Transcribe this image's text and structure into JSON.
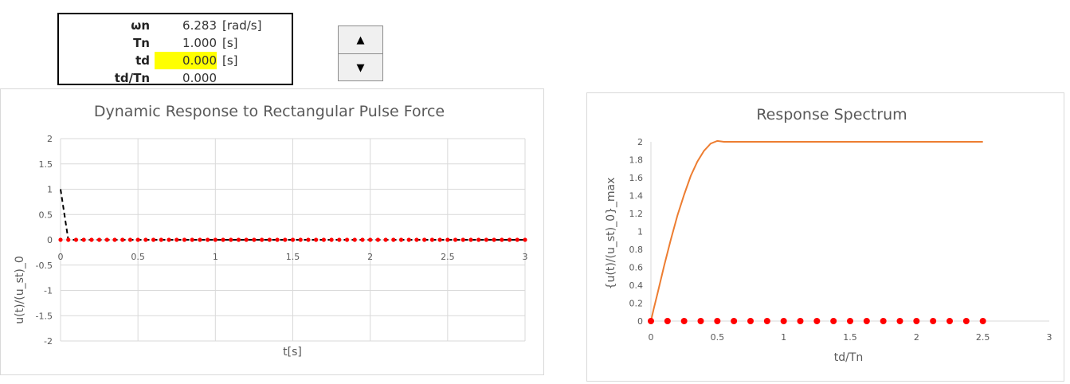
{
  "params": {
    "rows": [
      {
        "label": "ωn",
        "value": "6.283",
        "unit": "[rad/s]",
        "highlight": false
      },
      {
        "label": "Tn",
        "value": "1.000",
        "unit": "[s]",
        "highlight": false
      },
      {
        "label": "td",
        "value": "0.000",
        "unit": "[s]",
        "highlight": true
      },
      {
        "label": "td/Tn",
        "value": "0.000",
        "unit": "",
        "highlight": false
      }
    ],
    "highlight_color": "#ffff00"
  },
  "spinner": {
    "up_icon": "▲",
    "down_icon": "▼"
  },
  "colors": {
    "red_marker": "#ff0000",
    "orange_line": "#ed7d31",
    "dashed_line": "#000000",
    "grid": "#d9d9d9"
  },
  "chart_data": [
    {
      "type": "line",
      "title": "Dynamic Response to Rectangular Pulse Force",
      "xlabel": "t[s]",
      "ylabel": "u(t)/(u_st)_0",
      "xlim": [
        0,
        3
      ],
      "ylim": [
        -2,
        2
      ],
      "x_ticks": [
        "0",
        "0.5",
        "1",
        "1.5",
        "2",
        "2.5",
        "3"
      ],
      "y_ticks": [
        "2",
        "1.5",
        "1",
        "0.5",
        "0",
        "-0.5",
        "-1",
        "-1.5",
        "-2"
      ],
      "grid": true,
      "series": [
        {
          "style": "dashed",
          "color": "#000000",
          "x": [
            0,
            0.05,
            3
          ],
          "y": [
            1,
            0,
            0
          ]
        },
        {
          "style": "dots",
          "color": "#ff0000",
          "x": [
            0,
            0.05,
            0.1,
            0.15,
            0.2,
            0.25,
            0.3,
            0.35,
            0.4,
            0.45,
            0.5,
            0.55,
            0.6,
            0.65,
            0.7,
            0.75,
            0.8,
            0.85,
            0.9,
            0.95,
            1,
            1.05,
            1.1,
            1.15,
            1.2,
            1.25,
            1.3,
            1.35,
            1.4,
            1.45,
            1.5,
            1.55,
            1.6,
            1.65,
            1.7,
            1.75,
            1.8,
            1.85,
            1.9,
            1.95,
            2,
            2.05,
            2.1,
            2.15,
            2.2,
            2.25,
            2.3,
            2.35,
            2.4,
            2.45,
            2.5,
            2.55,
            2.6,
            2.65,
            2.7,
            2.75,
            2.8,
            2.85,
            2.9,
            2.95,
            3
          ],
          "y_const": 0
        }
      ]
    },
    {
      "type": "line",
      "title": "Response Spectrum",
      "xlabel": "td/Tn",
      "ylabel": "{u(t)/(u_st)_0}_max",
      "xlim": [
        0,
        3
      ],
      "ylim": [
        0,
        2
      ],
      "x_ticks": [
        "0",
        "0.5",
        "1",
        "1.5",
        "2",
        "2.5",
        "3"
      ],
      "y_ticks": [
        "2",
        "1.8",
        "1.6",
        "1.4",
        "1.2",
        "1",
        "0.8",
        "0.6",
        "0.4",
        "0.2",
        "0"
      ],
      "grid": false,
      "series": [
        {
          "style": "line",
          "color": "#ed7d31",
          "x": [
            0,
            0.02,
            0.05,
            0.1,
            0.15,
            0.2,
            0.25,
            0.3,
            0.35,
            0.4,
            0.45,
            0.5,
            0.55,
            0.6,
            1,
            1.5,
            2,
            2.5
          ],
          "y": [
            0,
            0.13,
            0.31,
            0.62,
            0.91,
            1.18,
            1.41,
            1.62,
            1.78,
            1.9,
            1.98,
            2.01,
            2,
            2,
            2,
            2,
            2,
            2
          ]
        },
        {
          "style": "dots",
          "color": "#ff0000",
          "x": [
            0,
            0.125,
            0.25,
            0.375,
            0.5,
            0.625,
            0.75,
            0.875,
            1,
            1.125,
            1.25,
            1.375,
            1.5,
            1.625,
            1.75,
            1.875,
            2,
            2.125,
            2.25,
            2.375,
            2.5
          ],
          "y_const": 0
        }
      ]
    }
  ]
}
